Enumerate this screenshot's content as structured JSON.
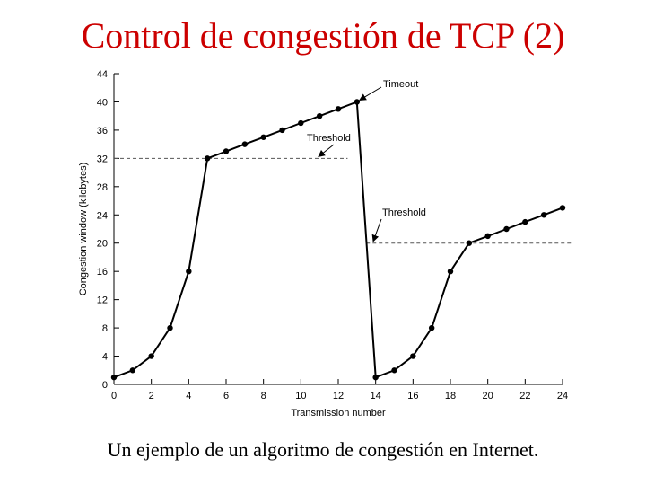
{
  "slide": {
    "title": "Control de congestión de TCP (2)",
    "caption": "Un ejemplo de un algoritmo de congestión en Internet."
  },
  "chart_data": {
    "type": "line",
    "xlabel": "Transmission number",
    "ylabel": "Congestion window (kilobytes)",
    "xlim": [
      0,
      24
    ],
    "ylim": [
      0,
      44
    ],
    "xticks": [
      0,
      2,
      4,
      6,
      8,
      10,
      12,
      14,
      16,
      18,
      20,
      22,
      24
    ],
    "yticks": [
      0,
      4,
      8,
      12,
      16,
      20,
      24,
      28,
      32,
      36,
      40,
      44
    ],
    "grid": false,
    "series": [
      {
        "x": [
          0,
          1,
          2,
          3,
          4,
          5,
          6,
          7,
          8,
          9,
          10,
          11,
          12,
          13,
          14,
          15,
          16,
          17,
          18,
          19,
          20,
          21,
          22,
          23,
          24
        ],
        "values": [
          1,
          2,
          4,
          8,
          16,
          32,
          33,
          34,
          35,
          36,
          37,
          38,
          39,
          40,
          1,
          2,
          4,
          8,
          16,
          20,
          21,
          22,
          23,
          24,
          25
        ],
        "color": "#000000"
      }
    ],
    "thresholds": [
      {
        "y": 32,
        "x_from": 0,
        "x_to": 12.5
      },
      {
        "y": 20,
        "x_from": 13.5,
        "x_to": 24.5
      }
    ],
    "annotations": [
      {
        "text": "Timeout",
        "x": 13,
        "y": 40
      },
      {
        "text": "Threshold",
        "x": 11,
        "y": 32
      },
      {
        "text": "Threshold",
        "x": 14,
        "y": 20
      }
    ]
  }
}
